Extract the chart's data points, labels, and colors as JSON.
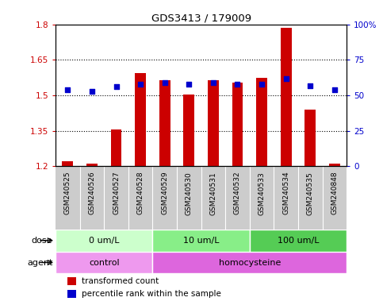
{
  "title": "GDS3413 / 179009",
  "samples": [
    "GSM240525",
    "GSM240526",
    "GSM240527",
    "GSM240528",
    "GSM240529",
    "GSM240530",
    "GSM240531",
    "GSM240532",
    "GSM240533",
    "GSM240534",
    "GSM240535",
    "GSM240848"
  ],
  "transformed_count": [
    1.22,
    1.21,
    1.355,
    1.595,
    1.565,
    1.505,
    1.565,
    1.555,
    1.575,
    1.785,
    1.44,
    1.21
  ],
  "percentile_rank": [
    54,
    53,
    56,
    58,
    59,
    58,
    59,
    58,
    58,
    62,
    57,
    54
  ],
  "ylim_left": [
    1.2,
    1.8
  ],
  "ylim_right": [
    0,
    100
  ],
  "yticks_left": [
    1.2,
    1.35,
    1.5,
    1.65,
    1.8
  ],
  "yticks_right": [
    0,
    25,
    50,
    75,
    100
  ],
  "ytick_labels_left": [
    "1.2",
    "1.35",
    "1.5",
    "1.65",
    "1.8"
  ],
  "ytick_labels_right": [
    "0",
    "25",
    "50",
    "75",
    "100%"
  ],
  "bar_color": "#cc0000",
  "dot_color": "#0000cc",
  "bar_bottom": 1.2,
  "dose_groups": [
    {
      "label": "0 um/L",
      "start": 0,
      "end": 4,
      "color": "#ccffcc"
    },
    {
      "label": "10 um/L",
      "start": 4,
      "end": 8,
      "color": "#88ee88"
    },
    {
      "label": "100 um/L",
      "start": 8,
      "end": 12,
      "color": "#55cc55"
    }
  ],
  "agent_groups": [
    {
      "label": "control",
      "start": 0,
      "end": 4,
      "color": "#ee88ee"
    },
    {
      "label": "homocysteine",
      "start": 4,
      "end": 12,
      "color": "#dd66dd"
    }
  ],
  "dose_label": "dose",
  "agent_label": "agent",
  "legend_bar_label": "transformed count",
  "legend_dot_label": "percentile rank within the sample",
  "tick_area_color": "#cccccc",
  "figure_bg_color": "#ffffff"
}
